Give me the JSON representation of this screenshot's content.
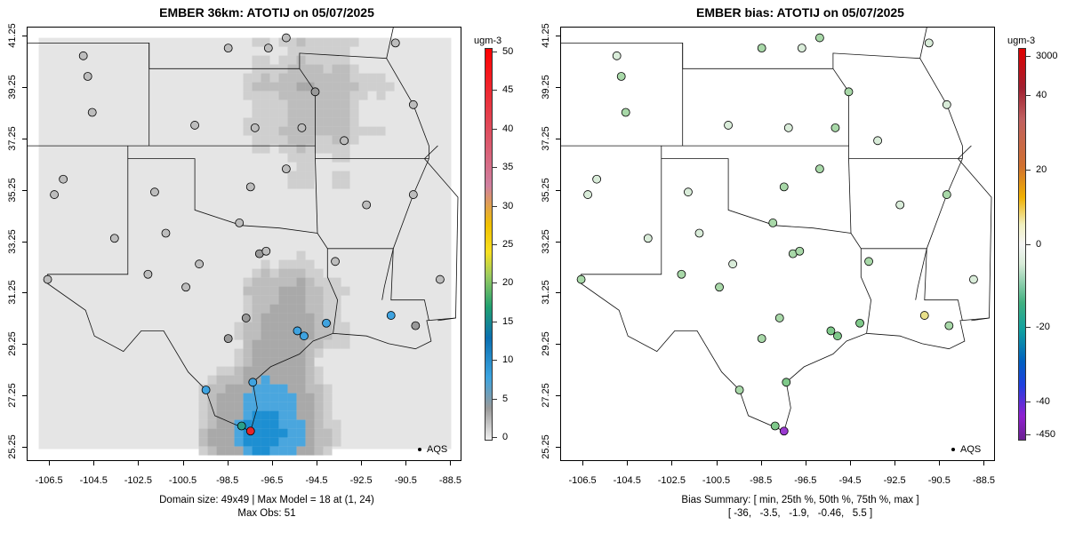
{
  "left": {
    "title": "EMBER 36km: ATOTIJ on 05/07/2025",
    "colorbar_unit": "ugm-3",
    "colorbar_ticks": [
      "50",
      "45",
      "40",
      "35",
      "30",
      "25",
      "20",
      "15",
      "10",
      "5",
      "0"
    ],
    "colorbar_values": [
      50,
      45,
      40,
      35,
      30,
      25,
      20,
      15,
      10,
      5,
      0
    ],
    "legend_label": "AQS",
    "footer_line1": "Domain size: 49x49 | Max Model = 18 at (1, 24)",
    "footer_line2": "Max Obs: 51"
  },
  "right": {
    "title": "EMBER bias: ATOTIJ on 05/07/2025",
    "colorbar_unit": "ugm-3",
    "colorbar_ticks": [
      "3000",
      "40",
      "20",
      "0",
      "-20",
      "-40",
      "-450"
    ],
    "legend_label": "AQS",
    "footer_line1": "Bias Summary: [ min, 25th %, 50th %, 75th %, max ]",
    "footer_line2": "[ -36,   -3.5,   -1.9,   -0.46,   5.5 ]"
  },
  "axes": {
    "x_ticks": [
      "-106.5",
      "-104.5",
      "-102.5",
      "-100.5",
      "-98.5",
      "-96.5",
      "-94.5",
      "-92.5",
      "-90.5",
      "-88.5"
    ],
    "x_values": [
      -106.5,
      -104.5,
      -102.5,
      -100.5,
      -98.5,
      -96.5,
      -94.5,
      -92.5,
      -90.5,
      -88.5
    ],
    "y_ticks": [
      "41.25",
      "39.25",
      "37.25",
      "35.25",
      "33.25",
      "31.25",
      "29.25",
      "27.25",
      "25.25"
    ],
    "y_values": [
      41.25,
      39.25,
      37.25,
      35.25,
      33.25,
      31.25,
      29.25,
      27.25,
      25.25
    ],
    "lon_range": [
      -107.5,
      -88.0
    ],
    "lat_range": [
      24.7,
      41.6
    ]
  },
  "colors": {
    "model_high": "#e3262a",
    "model_mid": "#3fa3e0",
    "bias_pos": "#e8e08a",
    "bias_neg": "#a8d8a8",
    "bias_min": "#9a3ad0",
    "gray_light": "#e6e6e6",
    "gray_mid": "#bdbdbd"
  },
  "sites": [
    {
      "lon": -106.3,
      "lat": 35.1,
      "m": 4,
      "b": -1
    },
    {
      "lon": -106.6,
      "lat": 31.8,
      "m": 3,
      "b": -2
    },
    {
      "lon": -104.8,
      "lat": 39.7,
      "m": 5,
      "b": -3
    },
    {
      "lon": -105.0,
      "lat": 40.5,
      "m": 4,
      "b": -1
    },
    {
      "lon": -104.6,
      "lat": 38.3,
      "m": 3,
      "b": -2
    },
    {
      "lon": -105.9,
      "lat": 35.7,
      "m": 4,
      "b": -1
    },
    {
      "lon": -101.8,
      "lat": 35.2,
      "m": 2,
      "b": -1
    },
    {
      "lon": -101.3,
      "lat": 33.6,
      "m": 3,
      "b": -1
    },
    {
      "lon": -102.1,
      "lat": 32.0,
      "m": 2,
      "b": -2
    },
    {
      "lon": -100.4,
      "lat": 31.5,
      "m": 3,
      "b": -2
    },
    {
      "lon": -97.7,
      "lat": 30.3,
      "m": 6,
      "b": -3
    },
    {
      "lon": -98.5,
      "lat": 29.5,
      "m": 7,
      "b": -2
    },
    {
      "lon": -97.1,
      "lat": 32.8,
      "m": 6,
      "b": -3
    },
    {
      "lon": -96.8,
      "lat": 32.9,
      "m": 5,
      "b": -4
    },
    {
      "lon": -95.4,
      "lat": 29.8,
      "m": 12,
      "b": -6
    },
    {
      "lon": -95.1,
      "lat": 29.6,
      "m": 14,
      "b": -8
    },
    {
      "lon": -94.1,
      "lat": 30.1,
      "m": 10,
      "b": -5
    },
    {
      "lon": -97.4,
      "lat": 27.8,
      "m": 14,
      "b": -10
    },
    {
      "lon": -97.5,
      "lat": 25.9,
      "m": 51,
      "b": -36
    },
    {
      "lon": -97.9,
      "lat": 26.1,
      "m": 18,
      "b": -12
    },
    {
      "lon": -99.5,
      "lat": 27.5,
      "m": 12,
      "b": -3
    },
    {
      "lon": -97.5,
      "lat": 35.4,
      "m": 4,
      "b": -2
    },
    {
      "lon": -95.9,
      "lat": 36.1,
      "m": 5,
      "b": -2
    },
    {
      "lon": -94.6,
      "lat": 39.1,
      "m": 6,
      "b": -2
    },
    {
      "lon": -92.3,
      "lat": 34.7,
      "m": 4,
      "b": -1
    },
    {
      "lon": -93.7,
      "lat": 32.5,
      "m": 5,
      "b": -2
    },
    {
      "lon": -91.2,
      "lat": 30.4,
      "m": 12,
      "b": 5.5
    },
    {
      "lon": -90.1,
      "lat": 30.0,
      "m": 8,
      "b": -4
    },
    {
      "lon": -90.2,
      "lat": 38.6,
      "m": 5,
      "b": -1
    },
    {
      "lon": -90.2,
      "lat": 35.1,
      "m": 4,
      "b": -2
    },
    {
      "lon": -89.0,
      "lat": 31.8,
      "m": 3,
      "b": -1
    },
    {
      "lon": -93.3,
      "lat": 37.2,
      "m": 4,
      "b": -1
    },
    {
      "lon": -95.2,
      "lat": 37.7,
      "m": 3,
      "b": -2
    },
    {
      "lon": -97.3,
      "lat": 37.7,
      "m": 4,
      "b": -1
    },
    {
      "lon": -100.0,
      "lat": 37.8,
      "m": 3,
      "b": -1
    },
    {
      "lon": -98.5,
      "lat": 40.8,
      "m": 3,
      "b": -2
    },
    {
      "lon": -96.7,
      "lat": 40.8,
      "m": 4,
      "b": -1
    },
    {
      "lon": -95.9,
      "lat": 41.2,
      "m": 5,
      "b": -2
    },
    {
      "lon": -91.0,
      "lat": 41.0,
      "m": 4,
      "b": -1
    },
    {
      "lon": -103.6,
      "lat": 33.4,
      "m": 2,
      "b": -1
    },
    {
      "lon": -99.8,
      "lat": 32.4,
      "m": 3,
      "b": -1
    },
    {
      "lon": -98.0,
      "lat": 34.0,
      "m": 3,
      "b": -2
    }
  ]
}
